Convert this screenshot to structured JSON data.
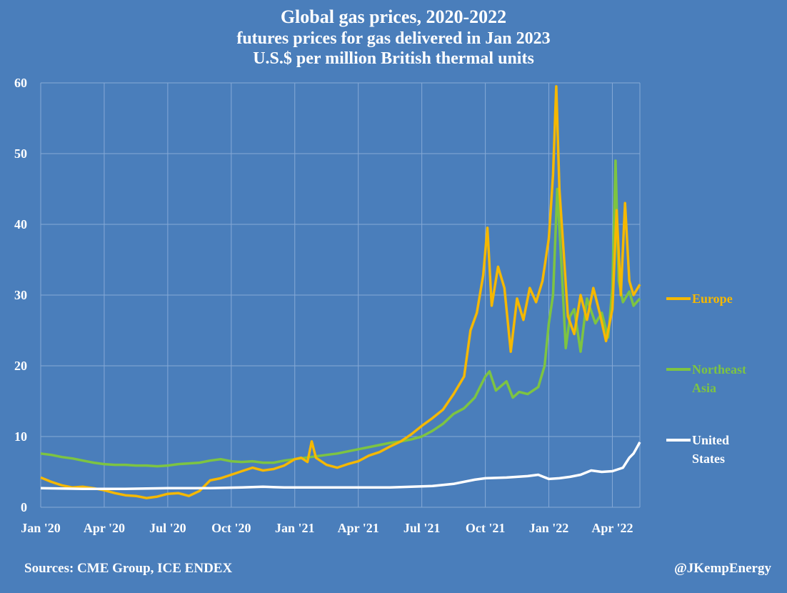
{
  "header": {
    "title": "Global gas prices, 2020-2022",
    "subtitle": "futures prices for gas delivered in Jan 2023",
    "units": "U.S.$ per million British thermal units"
  },
  "footer": {
    "sources": "Sources: CME Group, ICE ENDEX",
    "credit": "@JKempEnergy"
  },
  "chart_data": {
    "type": "line",
    "title": "Global gas prices, 2020-2022",
    "subtitle": "futures prices for gas delivered in Jan 2023",
    "ylabel": "U.S.$ per million British thermal units",
    "xlabel": "",
    "ylim": [
      0,
      60
    ],
    "yticks": [
      0,
      10,
      20,
      30,
      40,
      50,
      60
    ],
    "xticks": [
      "Jan '20",
      "Apr '20",
      "Jul '20",
      "Oct '20",
      "Jan '21",
      "Apr '21",
      "Jul '21",
      "Oct '21",
      "Jan '22",
      "Apr '22"
    ],
    "x_unit": "months since Jan 2020",
    "x_range": [
      0,
      28.3
    ],
    "grid": true,
    "legend_position": "right",
    "series": [
      {
        "name": "Europe",
        "color": "#f5b800",
        "legend_lines": [
          "Europe"
        ],
        "points": [
          [
            0,
            4.2
          ],
          [
            0.5,
            3.6
          ],
          [
            1,
            3.1
          ],
          [
            1.5,
            2.8
          ],
          [
            2,
            2.9
          ],
          [
            2.5,
            2.7
          ],
          [
            3,
            2.4
          ],
          [
            3.5,
            2.0
          ],
          [
            4,
            1.7
          ],
          [
            4.5,
            1.6
          ],
          [
            5,
            1.3
          ],
          [
            5.5,
            1.5
          ],
          [
            6,
            1.9
          ],
          [
            6.5,
            2.0
          ],
          [
            7,
            1.6
          ],
          [
            7.5,
            2.3
          ],
          [
            8,
            3.8
          ],
          [
            8.5,
            4.1
          ],
          [
            9,
            4.6
          ],
          [
            9.5,
            5.1
          ],
          [
            10,
            5.6
          ],
          [
            10.5,
            5.2
          ],
          [
            11,
            5.4
          ],
          [
            11.5,
            5.9
          ],
          [
            12,
            6.8
          ],
          [
            12.3,
            7.0
          ],
          [
            12.6,
            6.4
          ],
          [
            12.8,
            9.3
          ],
          [
            13,
            7.0
          ],
          [
            13.5,
            6.0
          ],
          [
            14,
            5.6
          ],
          [
            14.5,
            6.1
          ],
          [
            15,
            6.5
          ],
          [
            15.5,
            7.3
          ],
          [
            16,
            7.8
          ],
          [
            16.5,
            8.6
          ],
          [
            17,
            9.3
          ],
          [
            17.5,
            10.3
          ],
          [
            18,
            11.5
          ],
          [
            18.5,
            12.6
          ],
          [
            19,
            13.8
          ],
          [
            19.5,
            16.0
          ],
          [
            20,
            18.5
          ],
          [
            20.3,
            25.0
          ],
          [
            20.6,
            27.5
          ],
          [
            20.9,
            32.8
          ],
          [
            21.1,
            39.5
          ],
          [
            21.3,
            28.5
          ],
          [
            21.6,
            34.0
          ],
          [
            21.9,
            31.0
          ],
          [
            22.2,
            22.0
          ],
          [
            22.5,
            29.5
          ],
          [
            22.8,
            26.5
          ],
          [
            23.1,
            31.0
          ],
          [
            23.4,
            29.0
          ],
          [
            23.7,
            32.0
          ],
          [
            24,
            38.0
          ],
          [
            24.2,
            47.0
          ],
          [
            24.35,
            59.5
          ],
          [
            24.5,
            45.0
          ],
          [
            24.7,
            36.0
          ],
          [
            24.9,
            27.0
          ],
          [
            25.2,
            24.5
          ],
          [
            25.5,
            30.0
          ],
          [
            25.8,
            26.5
          ],
          [
            26.1,
            31.0
          ],
          [
            26.4,
            27.5
          ],
          [
            26.7,
            23.5
          ],
          [
            27,
            28.0
          ],
          [
            27.2,
            42.0
          ],
          [
            27.4,
            30.0
          ],
          [
            27.6,
            43.0
          ],
          [
            27.8,
            32.0
          ],
          [
            28,
            30.0
          ],
          [
            28.3,
            31.5
          ]
        ]
      },
      {
        "name": "Northeast Asia",
        "color": "#7dc442",
        "legend_lines": [
          "Northeast",
          "Asia"
        ],
        "points": [
          [
            0,
            7.6
          ],
          [
            0.5,
            7.4
          ],
          [
            1,
            7.1
          ],
          [
            1.5,
            6.9
          ],
          [
            2,
            6.6
          ],
          [
            2.5,
            6.3
          ],
          [
            3,
            6.1
          ],
          [
            3.5,
            6.0
          ],
          [
            4,
            6.0
          ],
          [
            4.5,
            5.9
          ],
          [
            5,
            5.9
          ],
          [
            5.5,
            5.8
          ],
          [
            6,
            5.9
          ],
          [
            6.5,
            6.1
          ],
          [
            7,
            6.2
          ],
          [
            7.5,
            6.3
          ],
          [
            8,
            6.6
          ],
          [
            8.5,
            6.8
          ],
          [
            9,
            6.5
          ],
          [
            9.5,
            6.4
          ],
          [
            10,
            6.5
          ],
          [
            10.5,
            6.3
          ],
          [
            11,
            6.3
          ],
          [
            11.5,
            6.6
          ],
          [
            12,
            6.8
          ],
          [
            12.5,
            7.0
          ],
          [
            13,
            7.2
          ],
          [
            13.5,
            7.4
          ],
          [
            14,
            7.6
          ],
          [
            14.5,
            7.9
          ],
          [
            15,
            8.2
          ],
          [
            15.5,
            8.5
          ],
          [
            16,
            8.8
          ],
          [
            16.5,
            9.1
          ],
          [
            17,
            9.3
          ],
          [
            17.5,
            9.6
          ],
          [
            18,
            10.0
          ],
          [
            18.5,
            10.8
          ],
          [
            19,
            11.8
          ],
          [
            19.5,
            13.2
          ],
          [
            20,
            14.0
          ],
          [
            20.5,
            15.5
          ],
          [
            21,
            18.5
          ],
          [
            21.2,
            19.2
          ],
          [
            21.5,
            16.5
          ],
          [
            22,
            17.8
          ],
          [
            22.3,
            15.5
          ],
          [
            22.6,
            16.3
          ],
          [
            23,
            16.0
          ],
          [
            23.5,
            17.0
          ],
          [
            23.8,
            20.0
          ],
          [
            24,
            26.0
          ],
          [
            24.2,
            30.0
          ],
          [
            24.4,
            45.0
          ],
          [
            24.6,
            34.0
          ],
          [
            24.8,
            22.5
          ],
          [
            25,
            27.0
          ],
          [
            25.2,
            28.0
          ],
          [
            25.5,
            22.0
          ],
          [
            25.8,
            29.5
          ],
          [
            26.2,
            26.0
          ],
          [
            26.5,
            27.5
          ],
          [
            26.8,
            24.0
          ],
          [
            27,
            31.0
          ],
          [
            27.15,
            49.0
          ],
          [
            27.3,
            32.0
          ],
          [
            27.5,
            29.0
          ],
          [
            27.8,
            30.5
          ],
          [
            28,
            28.5
          ],
          [
            28.3,
            29.5
          ]
        ]
      },
      {
        "name": "United States",
        "color": "#ffffff",
        "legend_lines": [
          "United",
          "States"
        ],
        "points": [
          [
            0,
            2.7
          ],
          [
            2,
            2.6
          ],
          [
            4,
            2.6
          ],
          [
            6,
            2.7
          ],
          [
            8,
            2.7
          ],
          [
            9.5,
            2.8
          ],
          [
            10.5,
            2.9
          ],
          [
            11.5,
            2.8
          ],
          [
            13,
            2.8
          ],
          [
            15,
            2.8
          ],
          [
            16.5,
            2.8
          ],
          [
            17.5,
            2.9
          ],
          [
            18.5,
            3.0
          ],
          [
            19.5,
            3.3
          ],
          [
            20.5,
            3.9
          ],
          [
            21,
            4.1
          ],
          [
            22,
            4.2
          ],
          [
            23,
            4.4
          ],
          [
            23.5,
            4.6
          ],
          [
            24,
            4.0
          ],
          [
            24.5,
            4.1
          ],
          [
            25,
            4.3
          ],
          [
            25.5,
            4.6
          ],
          [
            26,
            5.2
          ],
          [
            26.5,
            5.0
          ],
          [
            27,
            5.1
          ],
          [
            27.5,
            5.6
          ],
          [
            27.8,
            7.0
          ],
          [
            28,
            7.6
          ],
          [
            28.15,
            8.4
          ],
          [
            28.3,
            9.2
          ]
        ]
      }
    ]
  }
}
